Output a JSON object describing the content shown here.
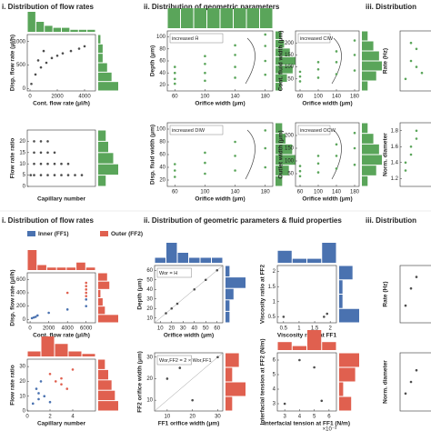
{
  "sections": [
    "i. Distribution of flow rates",
    "ii. Distribution of geometric parameters",
    "iii. Distribution",
    "i. Distribution of flow rates",
    "ii. Distribution of geometric parameters & fluid properties",
    "iii. Distribution"
  ],
  "legend": [
    {
      "name": "Inner (FF1)",
      "color": "#4a72b0"
    },
    {
      "name": "Outer (FF2)",
      "color": "#e0604f"
    }
  ],
  "chart_data": [
    {
      "type": "scatter",
      "xlabel": "Cont. flow rate (μl/h)",
      "ylabel": "Disp. flow rate (μl/h)",
      "xlim": [
        -200,
        4800
      ],
      "ylim": [
        -50,
        1150
      ],
      "xticks": [
        0,
        2000,
        4000
      ],
      "yticks": [
        0,
        500,
        1000
      ],
      "series": [
        {
          "color": "#4d4d4d",
          "x": [
            100,
            400,
            800,
            1200,
            1600,
            2000,
            2400,
            3000,
            3600,
            4000,
            600,
            1000
          ],
          "y": [
            100,
            300,
            450,
            550,
            650,
            700,
            750,
            800,
            850,
            900,
            600,
            800
          ]
        }
      ],
      "top_hist": [
        10,
        5,
        3,
        2,
        2,
        1,
        1,
        1
      ],
      "right_hist": [
        9,
        6,
        4,
        2,
        2,
        1
      ],
      "hist_color": "#5aa55a"
    },
    {
      "type": "scatter",
      "xlabel": "Orifice width (μm)",
      "ylabel": "Depth (μm)",
      "xlim": [
        50,
        190
      ],
      "ylim": [
        10,
        110
      ],
      "xticks": [
        60,
        100,
        140,
        180
      ],
      "yticks": [
        20,
        40,
        60,
        80,
        100
      ],
      "annotation": "increased H̄",
      "series": [
        {
          "color": "#5aa55a",
          "x": [
            60,
            100,
            140,
            180,
            60,
            100,
            140,
            180,
            60,
            100,
            140,
            180,
            60,
            100,
            140,
            180
          ],
          "y": [
            22,
            27,
            32,
            37,
            30,
            40,
            50,
            60,
            40,
            55,
            70,
            85,
            50,
            68,
            86,
            104
          ]
        }
      ],
      "top_hist": [
        5,
        5,
        5,
        5,
        5,
        5,
        5,
        5
      ],
      "right_hist": [
        2,
        4,
        6,
        7,
        5,
        3,
        2
      ],
      "hist_color": "#5aa55a"
    },
    {
      "type": "scatter",
      "xlabel": "Orifice width (μm)",
      "ylabel": "Cont. fluid width (μm)",
      "xlim": [
        50,
        190
      ],
      "ylim": [
        0,
        250
      ],
      "xticks": [
        60,
        100,
        140,
        180
      ],
      "yticks": [
        50,
        100,
        150,
        200
      ],
      "annotation": "increased CIW",
      "series": [
        {
          "color": "#5aa55a",
          "x": [
            60,
            100,
            140,
            180,
            60,
            100,
            140,
            180,
            60,
            100,
            140,
            180
          ],
          "y": [
            40,
            55,
            70,
            85,
            60,
            90,
            120,
            150,
            80,
            120,
            165,
            210
          ]
        }
      ],
      "right_hist": [
        2,
        5,
        7,
        6,
        4,
        2
      ],
      "hist_color": "#5aa55a"
    },
    {
      "type": "scatter",
      "ylabel": "Rate (Hz)",
      "xlim": [
        0,
        10
      ],
      "ylim": [
        0,
        10
      ],
      "series": [
        {
          "color": "#5aa55a",
          "x": [
            1,
            2,
            3,
            4,
            2,
            3
          ],
          "y": [
            2,
            5,
            7,
            3,
            8,
            4
          ]
        }
      ]
    },
    {
      "type": "scatter",
      "xlabel": "Capillary number",
      "ylabel": "Flow rate ratio",
      "xlim": [
        0,
        10
      ],
      "ylim": [
        0,
        25
      ],
      "yticks": [
        0,
        5,
        10,
        15,
        20
      ],
      "series": [
        {
          "color": "#4d4d4d",
          "x": [
            0.5,
            1,
            2,
            3,
            4,
            5,
            6,
            7,
            8,
            1,
            2,
            3,
            4,
            5,
            6,
            1,
            2,
            3,
            4,
            1,
            2,
            3
          ],
          "y": [
            5,
            5,
            5,
            5,
            5,
            5,
            5,
            5,
            5,
            10,
            10,
            10,
            10,
            10,
            10,
            15,
            15,
            15,
            15,
            20,
            20,
            20
          ]
        }
      ],
      "right_hist": [
        3,
        8,
        6,
        4,
        3
      ],
      "hist_color": "#5aa55a"
    },
    {
      "type": "scatter",
      "xlabel": "Orifice width (μm)",
      "ylabel": "Disp. fluid width (μm)",
      "xlim": [
        50,
        190
      ],
      "ylim": [
        10,
        110
      ],
      "xticks": [
        60,
        100,
        140,
        180
      ],
      "yticks": [
        20,
        40,
        60,
        80,
        100
      ],
      "annotation": "increased DIW",
      "series": [
        {
          "color": "#5aa55a",
          "x": [
            60,
            100,
            140,
            180,
            60,
            100,
            140,
            180,
            60,
            100,
            140,
            180
          ],
          "y": [
            25,
            30,
            35,
            40,
            35,
            47,
            58,
            70,
            45,
            63,
            80,
            98
          ]
        }
      ],
      "right_hist": [
        2,
        4,
        6,
        5,
        3,
        2
      ],
      "hist_color": "#5aa55a"
    },
    {
      "type": "scatter",
      "xlabel": "Orifice width (μm)",
      "ylabel": "Outlet width (μm)",
      "xlim": [
        50,
        190
      ],
      "ylim": [
        0,
        250
      ],
      "xticks": [
        60,
        100,
        140,
        180
      ],
      "yticks": [
        50,
        100,
        150,
        200
      ],
      "annotation": "increased OCW",
      "series": [
        {
          "color": "#5aa55a",
          "x": [
            60,
            100,
            140,
            180,
            60,
            100,
            140,
            180,
            60,
            100,
            140,
            180
          ],
          "y": [
            40,
            55,
            70,
            85,
            60,
            90,
            120,
            150,
            80,
            120,
            165,
            210
          ]
        }
      ],
      "right_hist": [
        2,
        5,
        7,
        6,
        4,
        2
      ],
      "hist_color": "#5aa55a"
    },
    {
      "type": "scatter",
      "ylabel": "Norm. diameter",
      "xlim": [
        0,
        10
      ],
      "ylim": [
        1.1,
        1.9
      ],
      "yticks": [
        1.2,
        1.4,
        1.6,
        1.8
      ],
      "series": [
        {
          "color": "#5aa55a",
          "x": [
            1,
            2,
            3,
            1,
            2,
            3
          ],
          "y": [
            1.3,
            1.5,
            1.7,
            1.4,
            1.6,
            1.8
          ]
        }
      ]
    },
    {
      "type": "scatter",
      "xlabel": "Cont. flow rate (μl/h)",
      "ylabel": "Disp. flow rate (μl/h)",
      "xlim": [
        -300,
        7000
      ],
      "ylim": [
        -50,
        700
      ],
      "xticks": [
        0,
        2000,
        4000,
        6000
      ],
      "yticks": [
        0,
        200,
        400,
        600
      ],
      "series": [
        {
          "color": "#4a72b0",
          "x": [
            200,
            400,
            600,
            800,
            2000,
            4000,
            6000,
            6000
          ],
          "y": [
            20,
            30,
            40,
            60,
            100,
            150,
            200,
            300
          ]
        },
        {
          "color": "#e0604f",
          "x": [
            4000,
            6000,
            6000,
            6000,
            6000,
            6000
          ],
          "y": [
            400,
            350,
            400,
            450,
            500,
            550
          ]
        }
      ],
      "top_hist": [
        8,
        2,
        1,
        1,
        1,
        3,
        1
      ],
      "right_hist": [
        9,
        3,
        2,
        1,
        5,
        4
      ],
      "hist_color": "#e0604f"
    },
    {
      "type": "scatter",
      "xlabel": "Orifice width (μm)",
      "ylabel": "Depth (μm)",
      "xlim": [
        5,
        65
      ],
      "ylim": [
        5,
        65
      ],
      "xticks": [
        10,
        20,
        30,
        40,
        50,
        60
      ],
      "yticks": [
        10,
        20,
        30,
        40,
        50,
        60
      ],
      "annotation": "Wor = H",
      "diagonal": true,
      "series": [
        {
          "color": "#4d4d4d",
          "x": [
            15,
            20,
            25,
            40,
            50,
            60
          ],
          "y": [
            15,
            20,
            25,
            40,
            50,
            60
          ]
        }
      ],
      "top_hist": [
        1,
        4,
        2,
        1,
        1,
        1
      ],
      "right_hist": [
        1,
        1,
        2,
        5,
        1
      ],
      "hist_color": "#4a72b0"
    },
    {
      "type": "scatter",
      "xlabel": "Viscosity ratio at FF1",
      "ylabel": "Viscosity ratio at FF2",
      "xlim": [
        0.3,
        2.2
      ],
      "ylim": [
        0.3,
        2.2
      ],
      "xticks": [
        0.5,
        1,
        1.5,
        2
      ],
      "yticks": [
        0.5,
        1,
        1.5,
        2
      ],
      "series": [
        {
          "color": "#4d4d4d",
          "x": [
            0.5,
            1.8,
            1.9
          ],
          "y": [
            0.5,
            0.5,
            0.6
          ]
        }
      ],
      "top_hist": [
        3,
        1,
        1,
        5
      ],
      "right_hist": [
        6,
        1,
        1,
        4
      ],
      "hist_color": "#4a72b0"
    },
    {
      "type": "scatter",
      "ylabel": "Rate (Hz)",
      "xlim": [
        0,
        10
      ],
      "ylim": [
        0,
        10
      ],
      "series": [
        {
          "color": "#4d4d4d",
          "x": [
            1,
            2,
            3
          ],
          "y": [
            3,
            6,
            8
          ]
        }
      ]
    },
    {
      "type": "scatter",
      "xlabel": "Capillary number",
      "ylabel": "Flow rate ratio",
      "xlim": [
        0,
        6
      ],
      "ylim": [
        0,
        35
      ],
      "xticks": [
        0,
        2,
        4
      ],
      "yticks": [
        0,
        10,
        20,
        30
      ],
      "series": [
        {
          "color": "#4a72b0",
          "x": [
            0.5,
            1,
            1,
            1.5,
            2,
            0.8,
            1.2
          ],
          "y": [
            5,
            8,
            12,
            10,
            6,
            15,
            20
          ]
        },
        {
          "color": "#e0604f",
          "x": [
            2,
            2.5,
            3,
            3,
            3.5,
            4
          ],
          "y": [
            25,
            20,
            22,
            18,
            15,
            28
          ]
        }
      ],
      "top_hist": [
        2,
        8,
        5,
        2,
        1
      ],
      "right_hist": [
        6,
        5,
        4,
        3,
        2
      ],
      "hist_color": "#e0604f"
    },
    {
      "type": "scatter",
      "xlabel": "FF1 orifice width (μm)",
      "ylabel": "FF2 orifice width (μm)",
      "xlim": [
        5,
        32
      ],
      "ylim": [
        5,
        32
      ],
      "xticks": [
        10,
        20,
        30
      ],
      "yticks": [
        10,
        20,
        30
      ],
      "annotation": "Wor,FF2 = 2 × Wor,FF1",
      "diagonal": true,
      "series": [
        {
          "color": "#4d4d4d",
          "x": [
            10,
            15,
            20,
            30
          ],
          "y": [
            20,
            25,
            10,
            30
          ]
        }
      ],
      "right_hist": [
        1,
        3,
        1,
        2
      ],
      "hist_color": "#e0604f"
    },
    {
      "type": "scatter",
      "xlabel": "Interfacial tension at FF1 (N/m)",
      "ylabel": "Interfacial tension at FF2 (N/m)",
      "xlim": [
        2.5,
        6.5
      ],
      "ylim": [
        2.5,
        6.5
      ],
      "xticks": [
        3,
        4,
        5,
        6
      ],
      "yticks": [
        3,
        4,
        5,
        6
      ],
      "exponent_label": "×10⁻³",
      "series": [
        {
          "color": "#4d4d4d",
          "x": [
            3,
            4,
            5,
            5.5
          ],
          "y": [
            3,
            6,
            5.5,
            3.2
          ]
        }
      ],
      "top_hist": [
        2,
        1,
        5,
        2
      ],
      "right_hist": [
        3,
        1,
        4,
        5
      ],
      "hist_color": "#e0604f"
    },
    {
      "type": "scatter",
      "ylabel": "Norm. diameter",
      "xlim": [
        0,
        10
      ],
      "ylim": [
        0,
        10
      ],
      "series": [
        {
          "color": "#4d4d4d",
          "x": [
            1,
            2,
            3
          ],
          "y": [
            3,
            5,
            7
          ]
        }
      ]
    }
  ]
}
